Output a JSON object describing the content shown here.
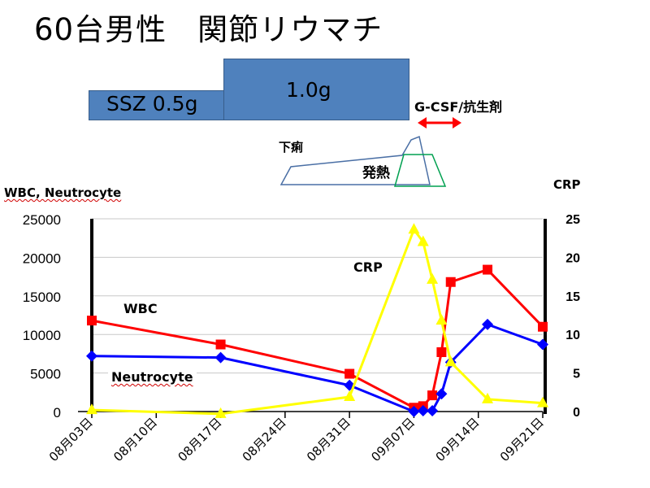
{
  "slide": {
    "title": "60台男性　関節リウマチ",
    "ssz_label": "SSZ 0.5g",
    "dose_label": "1.0g",
    "gcsf_label": "G-CSF/抗生剤",
    "diarrhea_label": "下痢",
    "fever_label": "発熱"
  },
  "colors": {
    "wbc": "#ff0000",
    "neutrocyte": "#0000ff",
    "crp": "#ffff00",
    "bar_fill": "#4f81bd",
    "arrow": "#ff0000",
    "diarrhea_shape": "#4a6fa5",
    "fever_shape": "#00a050"
  },
  "chart_data": {
    "type": "line",
    "x_type": "date",
    "x_ticks": [
      "08月03日",
      "08月10日",
      "08月17日",
      "08月24日",
      "08月31日",
      "09月07日",
      "09月14日",
      "09月21日"
    ],
    "ylabel_left": "WBC, Neutrocyte",
    "ylabel_right": "CRP",
    "ylim_left": [
      0,
      25000
    ],
    "ylim_right": [
      0,
      25
    ],
    "yticks_left": [
      "0",
      "5000",
      "10000",
      "15000",
      "20000",
      "25000"
    ],
    "yticks_right": [
      "0",
      "5",
      "10",
      "15",
      "20",
      "25"
    ],
    "series": [
      {
        "name": "WBC",
        "axis": "left",
        "marker": "square",
        "x": [
          "08-03",
          "08-17",
          "08-31",
          "09-07",
          "09-08",
          "09-09",
          "09-10",
          "09-11",
          "09-15",
          "09-21"
        ],
        "y": [
          11800,
          8700,
          4900,
          500,
          700,
          2100,
          7700,
          16800,
          18400,
          11000
        ]
      },
      {
        "name": "Neutrocyte",
        "axis": "left",
        "marker": "diamond",
        "x": [
          "08-03",
          "08-17",
          "08-31",
          "09-07",
          "09-08",
          "09-09",
          "09-10",
          "09-11",
          "09-15",
          "09-21"
        ],
        "y": [
          7200,
          7000,
          3400,
          0,
          100,
          100,
          2300,
          6400,
          11300,
          8700
        ]
      },
      {
        "name": "CRP",
        "axis": "right",
        "marker": "triangle",
        "x": [
          "08-03",
          "08-17",
          "08-31",
          "09-07",
          "09-08",
          "09-09",
          "09-10",
          "09-11",
          "09-15",
          "09-21"
        ],
        "y": [
          0.2,
          -0.3,
          1.9,
          23.6,
          22.0,
          17.1,
          11.8,
          6.4,
          1.6,
          1.1
        ]
      }
    ]
  }
}
